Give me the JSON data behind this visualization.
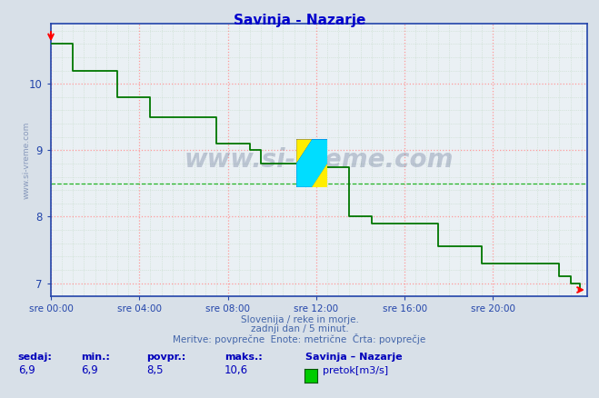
{
  "title": "Savinja - Nazarje",
  "title_color": "#0000cc",
  "bg_color": "#d8e0e8",
  "plot_bg_color": "#eaf0f4",
  "grid_major_color": "#ff9999",
  "grid_minor_color": "#aaccaa",
  "line_color": "#007700",
  "avg_line_color": "#00aa00",
  "avg_value": 8.5,
  "ylim_low": 6.85,
  "ylim_high": 10.9,
  "yticks": [
    7,
    8,
    9,
    10
  ],
  "xlim_low": 0,
  "xlim_high": 291,
  "xtick_positions": [
    0,
    48,
    96,
    144,
    192,
    240
  ],
  "xtick_labels": [
    "sre 00:00",
    "sre 04:00",
    "sre 08:00",
    "sre 12:00",
    "sre 16:00",
    "sre 20:00"
  ],
  "watermark": "www.si-vreme.com",
  "footer_line1": "Slovenija / reke in morje.",
  "footer_line2": "zadnji dan / 5 minut.",
  "footer_line3": "Meritve: povprečne  Enote: metrične  Črta: povprečje",
  "footer_color": "#4466aa",
  "stats_label_color": "#0000bb",
  "sedaj": "6,9",
  "min_val": "6,9",
  "povpr": "8,5",
  "maks": "10,6",
  "legend_label": "pretok[m3/s]",
  "legend_color": "#00cc00",
  "axis_color": "#2244aa",
  "tick_color": "#2244aa",
  "ylabel_text": "www.si-vreme.com",
  "data_x": [
    0,
    6,
    12,
    18,
    24,
    30,
    36,
    42,
    48,
    54,
    60,
    66,
    72,
    78,
    84,
    90,
    96,
    102,
    108,
    114,
    120,
    126,
    132,
    138,
    144,
    150,
    156,
    162,
    168,
    174,
    180,
    186,
    192,
    198,
    204,
    210,
    216,
    222,
    228,
    234,
    240,
    246,
    252,
    258,
    264,
    270,
    276,
    282,
    287
  ],
  "data_y": [
    10.6,
    10.6,
    10.2,
    10.2,
    10.2,
    10.2,
    9.8,
    9.8,
    9.8,
    9.5,
    9.5,
    9.5,
    9.5,
    9.5,
    9.5,
    9.1,
    9.1,
    9.1,
    9.0,
    8.8,
    8.8,
    8.8,
    8.8,
    8.75,
    8.75,
    8.75,
    8.75,
    8.0,
    8.0,
    7.9,
    7.9,
    7.9,
    7.9,
    7.9,
    7.9,
    7.55,
    7.55,
    7.55,
    7.55,
    7.3,
    7.3,
    7.3,
    7.3,
    7.3,
    7.3,
    7.3,
    7.1,
    7.0,
    6.9
  ]
}
